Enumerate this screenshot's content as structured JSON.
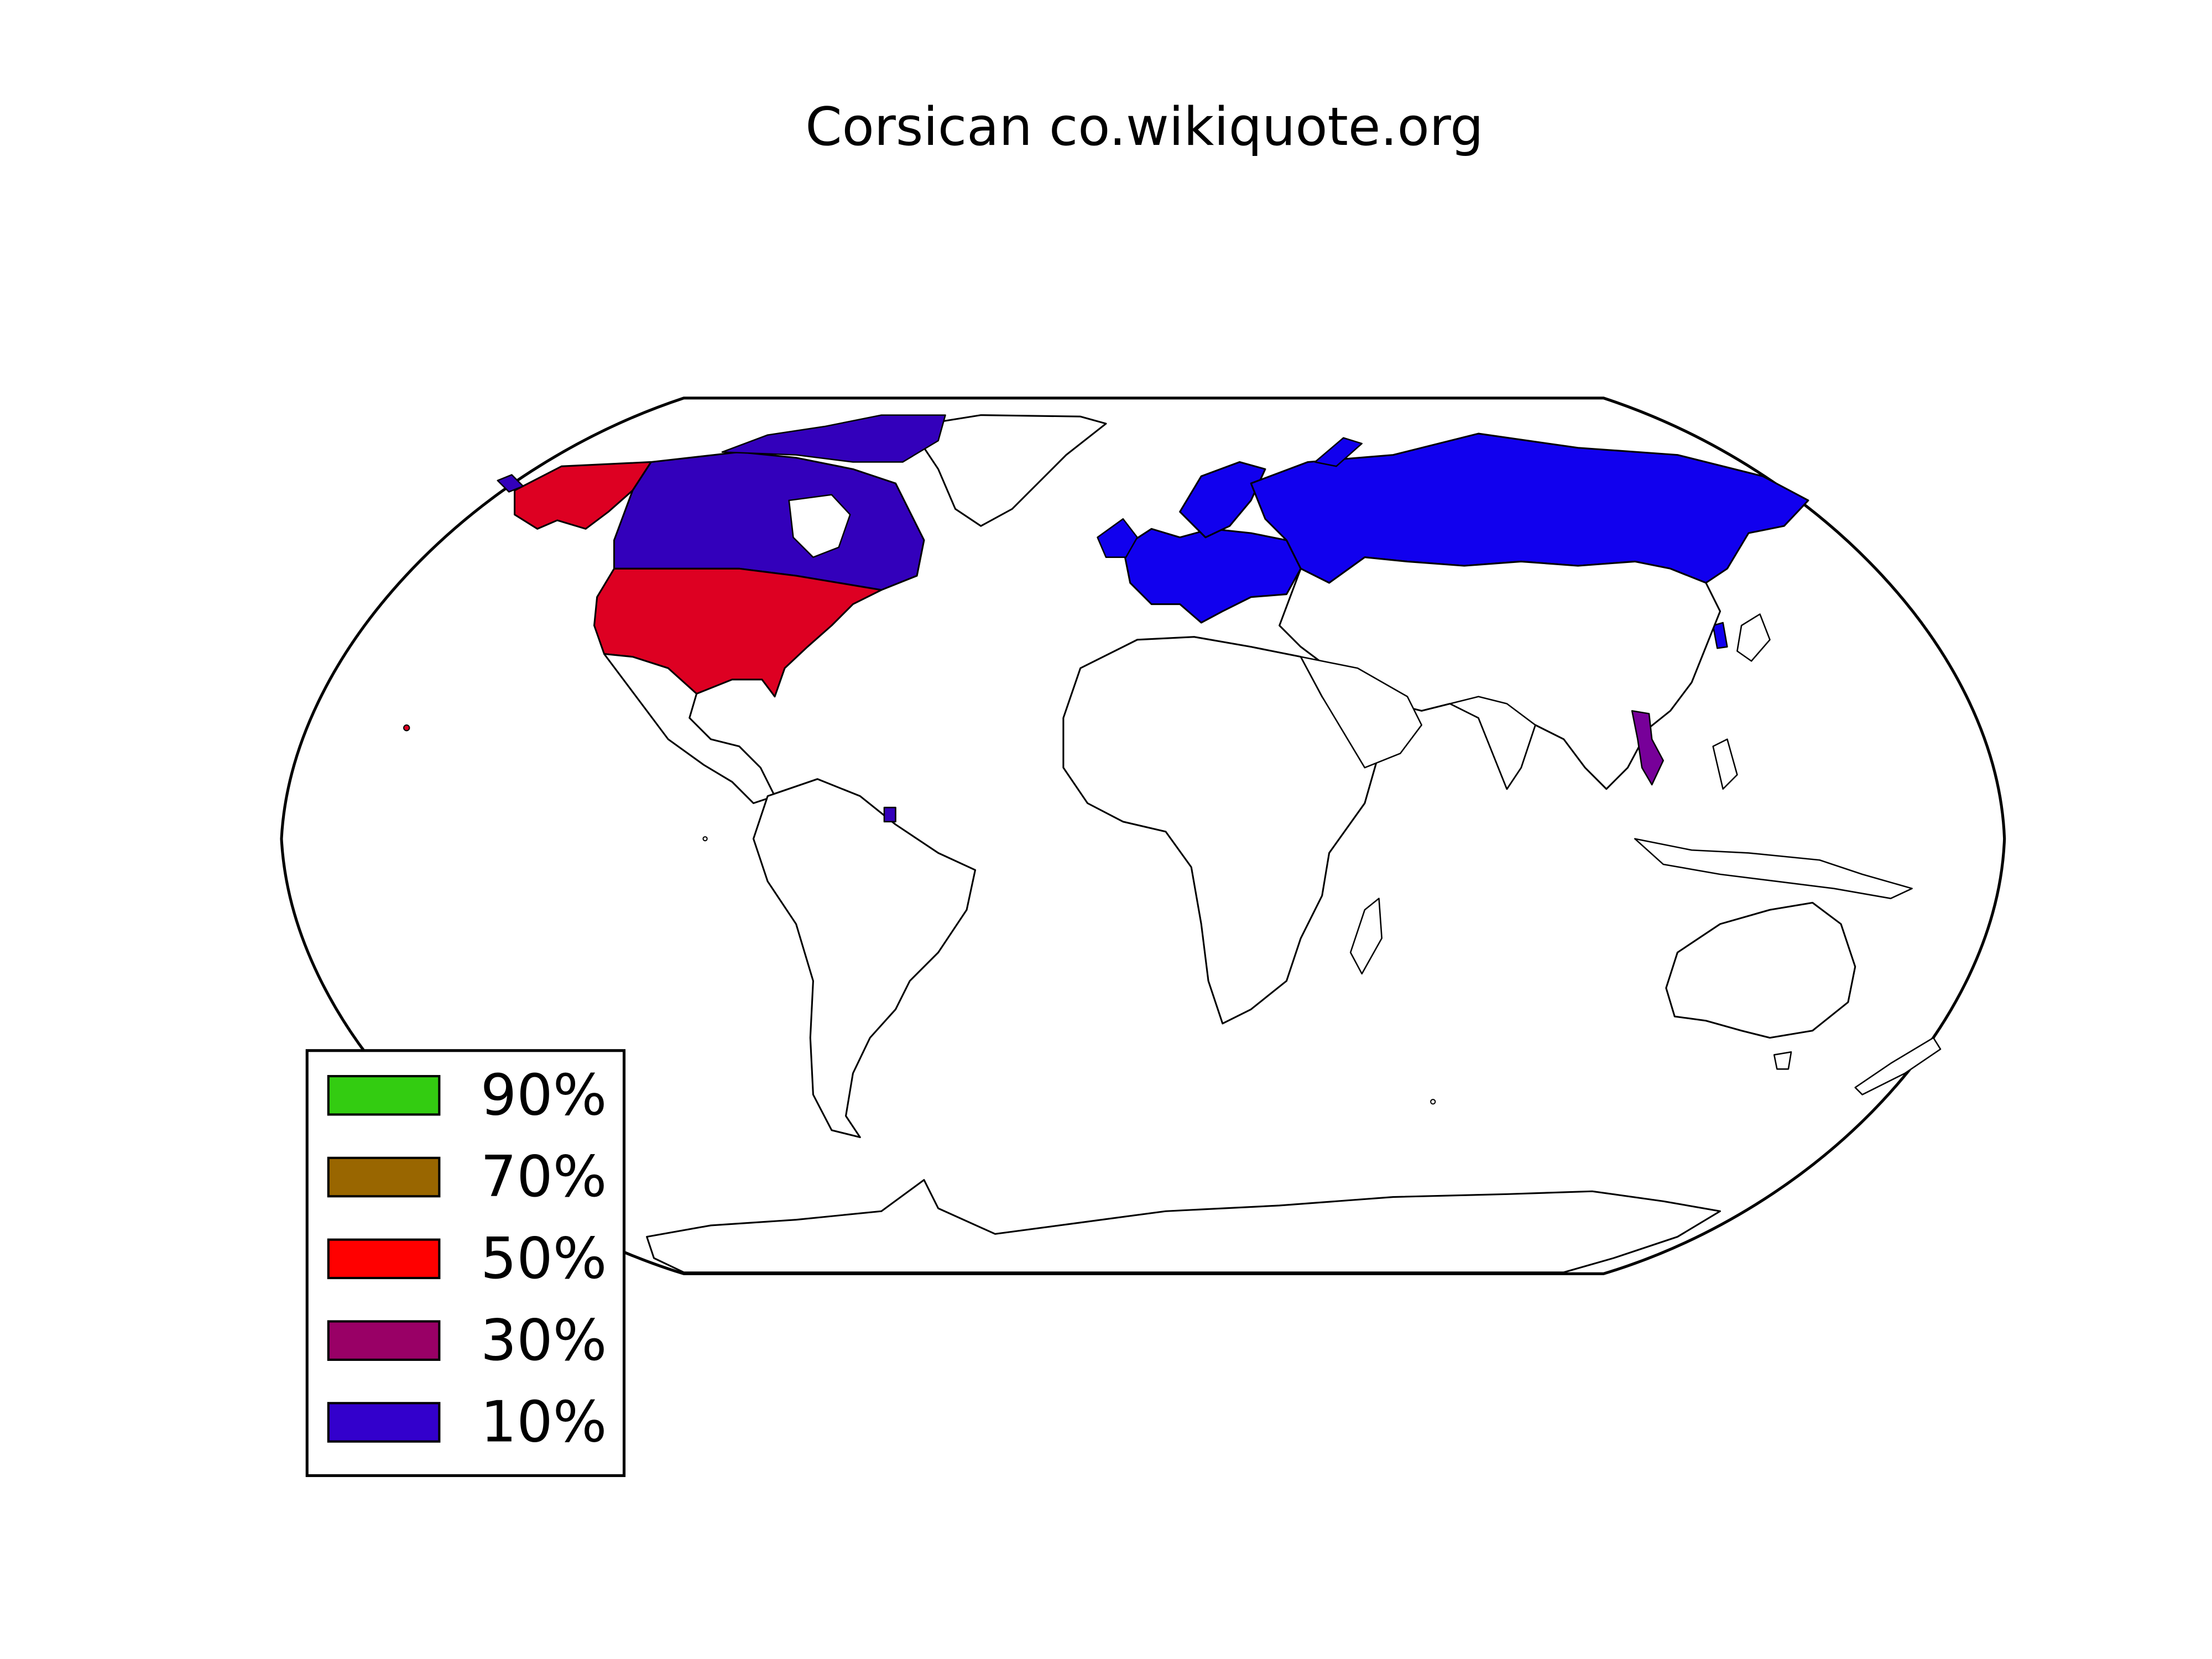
{
  "title": "Corsican co.wikiquote.org",
  "legend": [
    {
      "label": "90%",
      "color": "#33cc11"
    },
    {
      "label": "70%",
      "color": "#996600"
    },
    {
      "label": "50%",
      "color": "#ff0000"
    },
    {
      "label": "30%",
      "color": "#990066"
    },
    {
      "label": "10%",
      "color": "#3300cc"
    }
  ],
  "colors": {
    "background": "#ffffff",
    "land": "#ffffff",
    "outline": "#000000",
    "usa": "#dd0022",
    "alaska": "#dd0022",
    "canada": "#3300bb",
    "europe": "#1100ee",
    "russia": "#1100ee",
    "vietnam": "#770099"
  },
  "regions": [
    {
      "name": "United States",
      "share_class": "50%"
    },
    {
      "name": "Canada",
      "share_class": "10%"
    },
    {
      "name": "Russia",
      "share_class": "10%"
    },
    {
      "name": "Europe",
      "share_class": "10%"
    },
    {
      "name": "Vietnam",
      "share_class": "30%"
    }
  ]
}
